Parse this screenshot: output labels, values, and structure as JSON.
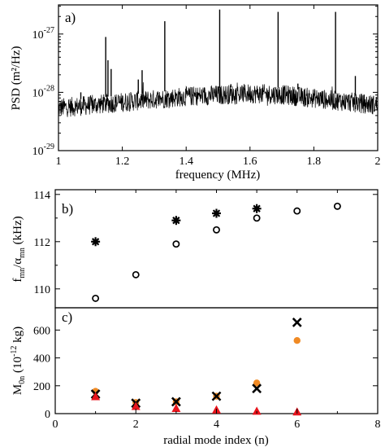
{
  "chart_data": [
    {
      "type": "line",
      "panel_label": "a)",
      "xlabel": "frequency (MHz)",
      "ylabel": "PSD (m²/Hz)",
      "xlim": [
        1.0,
        2.0
      ],
      "ylim_log10": [
        -29,
        -26.5
      ],
      "yscale": "log",
      "x_ticks": [
        "1",
        "1.2",
        "1.4",
        "1.6",
        "1.8",
        "2"
      ],
      "y_ticks": [
        {
          "base": "10",
          "exp": "-27",
          "log10": -27
        },
        {
          "base": "10",
          "exp": "-28",
          "log10": -28
        },
        {
          "base": "10",
          "exp": "-29",
          "log10": -29
        }
      ],
      "series": [
        {
          "noise_floor_log10": {
            "x": [
              1.0,
              1.2,
              1.4,
              1.6,
              1.7,
              1.8,
              2.0
            ],
            "y": [
              -28.27,
              -28.17,
              -28.07,
              -28.02,
              -28.04,
              -28.1,
              -28.22
            ]
          },
          "peaks": [
            {
              "x": 1.07,
              "y_log10": -28.0
            },
            {
              "x": 1.148,
              "y_log10": -27.05
            },
            {
              "x": 1.155,
              "y_log10": -27.45
            },
            {
              "x": 1.165,
              "y_log10": -27.6
            },
            {
              "x": 1.25,
              "y_log10": -27.78
            },
            {
              "x": 1.262,
              "y_log10": -27.62
            },
            {
              "x": 1.333,
              "y_log10": -26.78
            },
            {
              "x": 1.505,
              "y_log10": -26.58
            },
            {
              "x": 1.54,
              "y_log10": -27.86
            },
            {
              "x": 1.688,
              "y_log10": -26.62
            },
            {
              "x": 1.75,
              "y_log10": -27.85
            },
            {
              "x": 1.868,
              "y_log10": -26.62
            },
            {
              "x": 1.93,
              "y_log10": -27.72
            }
          ]
        }
      ],
      "color": "#000000"
    },
    {
      "type": "scatter",
      "panel_label": "b)",
      "xlabel": "",
      "ylabel": "f_mn/α_mn (kHz)",
      "ylabel_parts": {
        "main": "f",
        "sub1": "mn",
        "slash": "/α",
        "sub2": "mn",
        "unit": " (kHz)"
      },
      "xlim": [
        0,
        8
      ],
      "ylim": [
        109.2,
        114.2
      ],
      "y_ticks": [
        "110",
        "112",
        "114"
      ],
      "series": [
        {
          "marker": "asterisk",
          "x": [
            1,
            3,
            4,
            5
          ],
          "y": [
            112.0,
            112.9,
            113.2,
            113.4
          ]
        },
        {
          "marker": "open-circle",
          "x": [
            1,
            2,
            3,
            4,
            5,
            6,
            7
          ],
          "y": [
            109.6,
            110.6,
            111.9,
            112.5,
            113.0,
            113.3,
            113.5
          ]
        }
      ],
      "color": "#000000"
    },
    {
      "type": "scatter",
      "panel_label": "c)",
      "xlabel": "radial mode index (n)",
      "ylabel": "M_0n (10^-12 kg)",
      "ylabel_parts": {
        "main": "M",
        "sub": "0n",
        "open": " (10",
        "sup": "-12",
        "close": " kg)"
      },
      "xlim": [
        0,
        8
      ],
      "ylim": [
        0,
        760
      ],
      "x_ticks": [
        "0",
        "2",
        "4",
        "6",
        "8"
      ],
      "y_ticks": [
        "0",
        "200",
        "400",
        "600"
      ],
      "series": [
        {
          "marker": "filled-circle",
          "color": "#f08a24",
          "x": [
            1,
            2,
            3,
            4,
            5,
            6
          ],
          "y": [
            160,
            80,
            85,
            125,
            220,
            525
          ]
        },
        {
          "marker": "x-cross",
          "color": "#000000",
          "x": [
            1,
            2,
            3,
            4,
            5,
            6
          ],
          "y": [
            140,
            75,
            85,
            125,
            180,
            655
          ]
        },
        {
          "marker": "filled-triangle",
          "color": "#e8141c",
          "x": [
            1,
            2,
            3,
            4,
            5,
            6
          ],
          "y": [
            120,
            50,
            35,
            25,
            15,
            10
          ]
        }
      ]
    }
  ]
}
